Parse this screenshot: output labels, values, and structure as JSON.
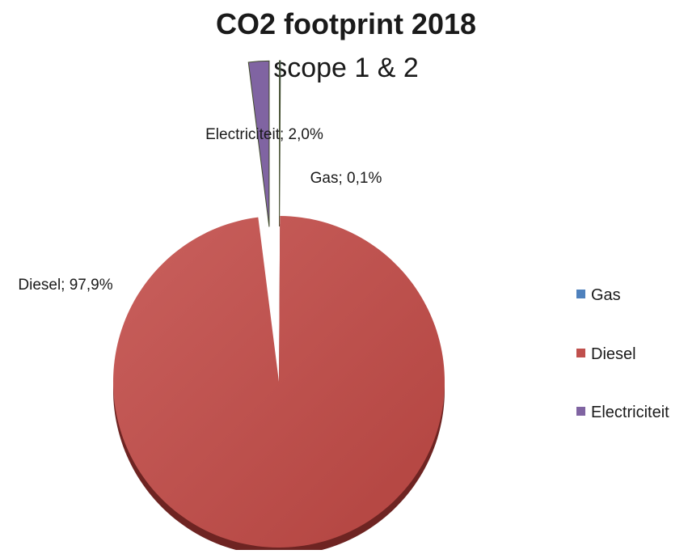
{
  "chart_data": {
    "type": "pie",
    "title": "CO2 footprint 2018",
    "subtitle": "scope 1 & 2",
    "categories": [
      "Gas",
      "Diesel",
      "Electriciteit"
    ],
    "values": [
      0.1,
      97.9,
      2.0
    ],
    "unit": "%",
    "data_labels": [
      "Gas; 0,1%",
      "Diesel; 97,9%",
      "Electriciteit; 2,0%"
    ],
    "exploded": [
      "Gas",
      "Electriciteit"
    ],
    "start_angle_deg": 0,
    "direction": "clockwise",
    "legend": {
      "position": "right",
      "entries": [
        "Gas",
        "Diesel",
        "Electriciteit"
      ]
    },
    "colors": [
      "#4f81bd",
      "#c0504d",
      "#8064a2"
    ]
  }
}
